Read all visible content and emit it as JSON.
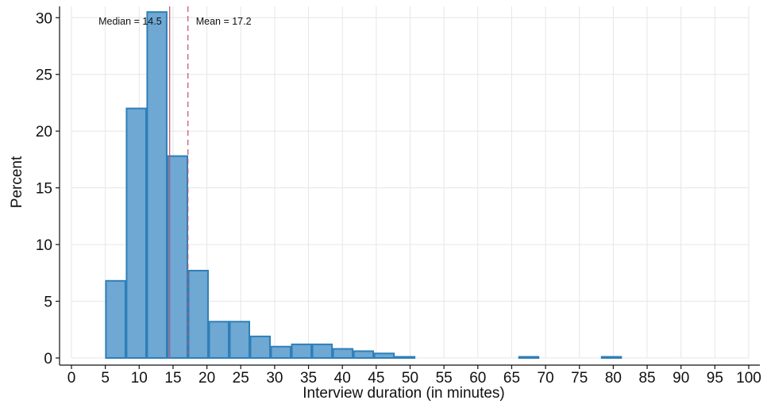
{
  "chart_data": {
    "type": "bar",
    "bin_width": 3.05,
    "bins": [
      {
        "start": 5.0,
        "percent": 6.8
      },
      {
        "start": 8.05,
        "percent": 22.0
      },
      {
        "start": 11.1,
        "percent": 30.5
      },
      {
        "start": 14.15,
        "percent": 17.8
      },
      {
        "start": 17.2,
        "percent": 7.7
      },
      {
        "start": 20.25,
        "percent": 3.2
      },
      {
        "start": 23.3,
        "percent": 3.2
      },
      {
        "start": 26.35,
        "percent": 1.9
      },
      {
        "start": 29.4,
        "percent": 1.0
      },
      {
        "start": 32.45,
        "percent": 1.2
      },
      {
        "start": 35.5,
        "percent": 1.2
      },
      {
        "start": 38.55,
        "percent": 0.8
      },
      {
        "start": 41.6,
        "percent": 0.6
      },
      {
        "start": 44.65,
        "percent": 0.4
      },
      {
        "start": 47.7,
        "percent": 0.1
      },
      {
        "start": 50.75,
        "percent": 0
      },
      {
        "start": 53.8,
        "percent": 0
      },
      {
        "start": 56.85,
        "percent": 0
      },
      {
        "start": 59.9,
        "percent": 0
      },
      {
        "start": 62.95,
        "percent": 0
      },
      {
        "start": 66.0,
        "percent": 0.1
      },
      {
        "start": 69.05,
        "percent": 0
      },
      {
        "start": 72.1,
        "percent": 0
      },
      {
        "start": 75.15,
        "percent": 0
      },
      {
        "start": 78.2,
        "percent": 0.1
      }
    ],
    "xlabel": "Interview duration (in minutes)",
    "ylabel": "Percent",
    "xlim": [
      0,
      100
    ],
    "ylim": [
      0,
      31
    ],
    "xticks": [
      0,
      5,
      10,
      15,
      20,
      25,
      30,
      35,
      40,
      45,
      50,
      55,
      60,
      65,
      70,
      75,
      80,
      85,
      90,
      95,
      100
    ],
    "yticks": [
      0,
      5,
      10,
      15,
      20,
      25,
      30
    ],
    "grid": true,
    "median": {
      "value": 14.5,
      "label": "Median = 14.5",
      "color": "#c0506a"
    },
    "mean": {
      "value": 17.2,
      "label": "Mean = 17.2",
      "color": "#c0506a"
    },
    "bar_fill": "#6ea8d3",
    "bar_stroke": "#2f7fb8",
    "grid_color": "#e6e6e6"
  }
}
